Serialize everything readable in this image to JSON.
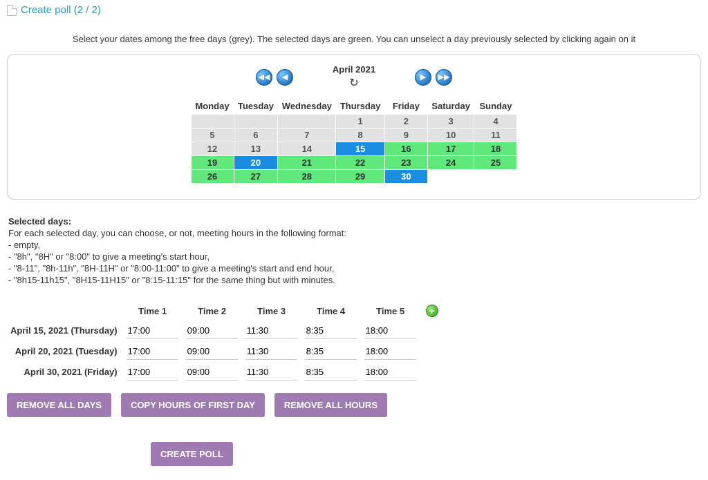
{
  "header": {
    "title": "Create poll (2 / 2)"
  },
  "instructions": "Select your dates among the free days (grey). The selected days are green. You can unselect a day previously selected by clicking again on it",
  "calendar": {
    "month_label": "April 2021",
    "colors": {
      "grey": "#e2e2e2",
      "green": "#60e87d",
      "blue": "#1b8de0"
    },
    "weekdays": [
      "Monday",
      "Tuesday",
      "Wednesday",
      "Thursday",
      "Friday",
      "Saturday",
      "Sunday"
    ],
    "rows": [
      [
        {
          "label": "",
          "state": "empty"
        },
        {
          "label": "",
          "state": "empty"
        },
        {
          "label": "",
          "state": "empty"
        },
        {
          "label": "1",
          "state": "grey"
        },
        {
          "label": "2",
          "state": "grey"
        },
        {
          "label": "3",
          "state": "grey"
        },
        {
          "label": "4",
          "state": "grey"
        }
      ],
      [
        {
          "label": "5",
          "state": "grey"
        },
        {
          "label": "6",
          "state": "grey"
        },
        {
          "label": "7",
          "state": "grey"
        },
        {
          "label": "8",
          "state": "grey"
        },
        {
          "label": "9",
          "state": "grey"
        },
        {
          "label": "10",
          "state": "grey"
        },
        {
          "label": "11",
          "state": "grey"
        }
      ],
      [
        {
          "label": "12",
          "state": "grey"
        },
        {
          "label": "13",
          "state": "grey"
        },
        {
          "label": "14",
          "state": "grey"
        },
        {
          "label": "15",
          "state": "blue"
        },
        {
          "label": "16",
          "state": "green"
        },
        {
          "label": "17",
          "state": "green"
        },
        {
          "label": "18",
          "state": "green"
        }
      ],
      [
        {
          "label": "19",
          "state": "green"
        },
        {
          "label": "20",
          "state": "blue"
        },
        {
          "label": "21",
          "state": "green"
        },
        {
          "label": "22",
          "state": "green"
        },
        {
          "label": "23",
          "state": "green"
        },
        {
          "label": "24",
          "state": "green"
        },
        {
          "label": "25",
          "state": "green"
        }
      ],
      [
        {
          "label": "26",
          "state": "green"
        },
        {
          "label": "27",
          "state": "green"
        },
        {
          "label": "28",
          "state": "green"
        },
        {
          "label": "29",
          "state": "green"
        },
        {
          "label": "30",
          "state": "blue"
        },
        {
          "label": "",
          "state": "none"
        },
        {
          "label": "",
          "state": "none"
        }
      ]
    ]
  },
  "selected": {
    "heading": "Selected days:",
    "line1": "For each selected day, you can choose, or not, meeting hours in the following format:",
    "line2": "- empty,",
    "line3": "- \"8h\", \"8H\" or \"8:00\" to give a meeting's start hour,",
    "line4": "- \"8-11\", \"8h-11h\", \"8H-11H\" or \"8:00-11:00\" to give a meeting's start and end hour,",
    "line5": "- \"8h15-11h15\", \"8H15-11H15\" or \"8:15-11:15\" for the same thing but with minutes."
  },
  "times": {
    "headers": [
      "Time 1",
      "Time 2",
      "Time 3",
      "Time 4",
      "Time 5"
    ],
    "rows": [
      {
        "day": "April 15, 2021 (Thursday)",
        "values": [
          "17:00",
          "09:00",
          "11:30",
          "8:35",
          "18:00"
        ]
      },
      {
        "day": "April 20, 2021 (Tuesday)",
        "values": [
          "17:00",
          "09:00",
          "11:30",
          "8:35",
          "18:00"
        ]
      },
      {
        "day": "April 30, 2021 (Friday)",
        "values": [
          "17:00",
          "09:00",
          "11:30",
          "8:35",
          "18:00"
        ]
      }
    ]
  },
  "buttons": {
    "remove_days": "REMOVE ALL DAYS",
    "copy_hours": "COPY HOURS OF FIRST DAY",
    "remove_hours": "REMOVE ALL HOURS",
    "create": "CREATE POLL"
  }
}
